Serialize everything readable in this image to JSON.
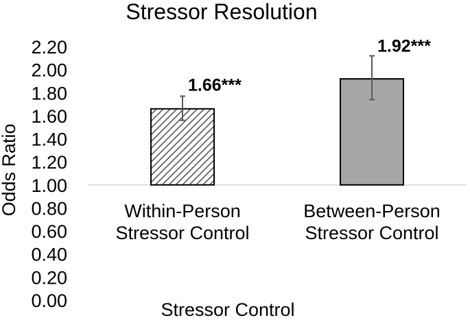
{
  "chart_data": {
    "type": "bar",
    "title": "Stressor Resolution",
    "xlabel": "Stressor Control",
    "ylabel": "Odds Ratio",
    "baseline": 1.0,
    "ylim": [
      0,
      2.2
    ],
    "yticks": [
      "0.00",
      "0.20",
      "0.40",
      "0.60",
      "0.80",
      "1.00",
      "1.20",
      "1.40",
      "1.60",
      "1.80",
      "2.00",
      "2.20"
    ],
    "categories": [
      [
        "Within-Person",
        "Stressor Control"
      ],
      [
        "Between-Person",
        "Stressor Control"
      ]
    ],
    "values": [
      1.66,
      1.92
    ],
    "error_low": [
      1.56,
      1.74
    ],
    "error_high": [
      1.77,
      2.12
    ],
    "data_labels": [
      "1.66***",
      "1.92***"
    ],
    "fills": [
      "hatched",
      "#a6a6a6"
    ]
  }
}
